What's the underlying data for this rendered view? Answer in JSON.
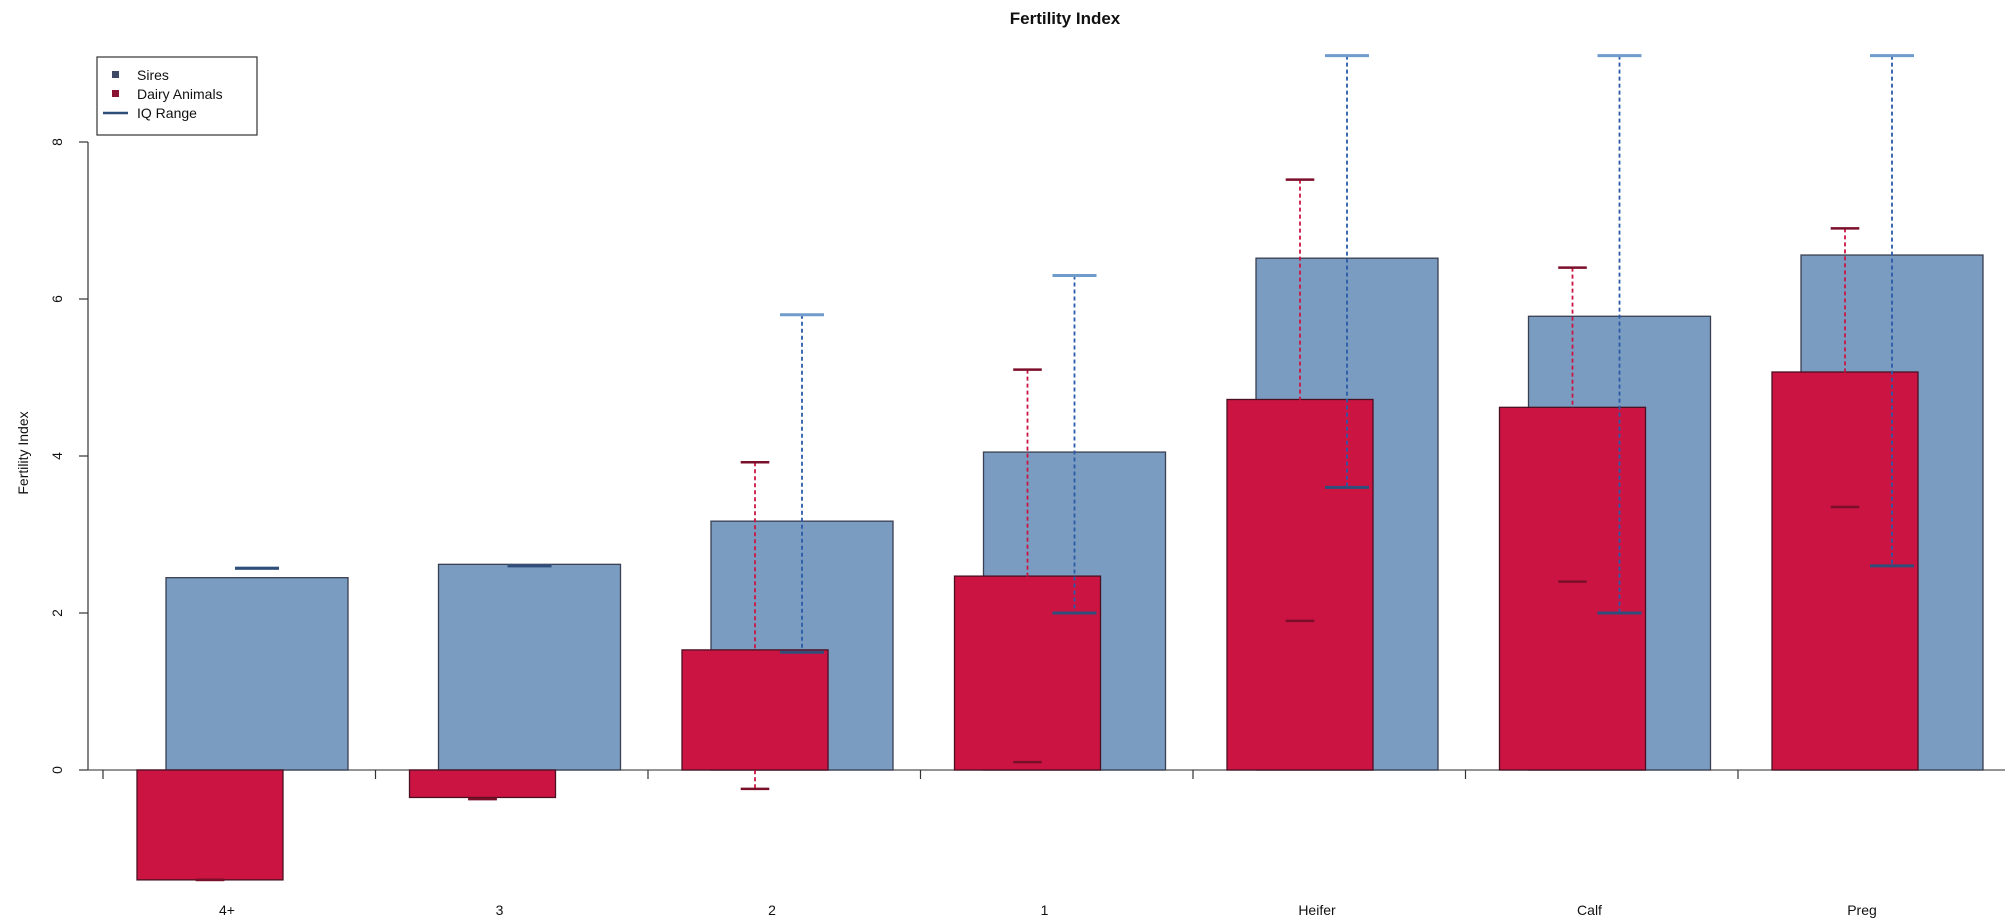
{
  "chart_data": {
    "type": "bar",
    "title": "Fertility Index",
    "xlabel": "",
    "ylabel": "Fertility Index",
    "categories": [
      "4+",
      "3",
      "2",
      "1",
      "Heifer",
      "Calf",
      "Preg"
    ],
    "ylim": [
      -1.5,
      9.1
    ],
    "yticks": [
      0,
      2,
      4,
      6,
      8
    ],
    "legend_position": "top-left",
    "legend": [
      "Sires",
      "Dairy Animals",
      "IQ Range"
    ],
    "series": [
      {
        "name": "Sires",
        "color": "#7a9cc0",
        "values": [
          2.45,
          2.62,
          3.17,
          4.05,
          6.52,
          5.78,
          6.56
        ],
        "iq_low": [
          2.57,
          2.6,
          1.5,
          2.0,
          3.6,
          2.0,
          2.6
        ],
        "iq_high": [
          2.57,
          2.6,
          5.8,
          6.3,
          9.1,
          9.1,
          9.1
        ]
      },
      {
        "name": "Dairy Animals",
        "color": "#cc1443",
        "values": [
          -1.4,
          -0.35,
          1.53,
          2.47,
          4.72,
          4.62,
          5.07
        ],
        "iq_low": [
          -1.4,
          -0.37,
          -0.24,
          0.1,
          1.9,
          2.4,
          3.35
        ],
        "iq_high": [
          -1.4,
          -0.37,
          3.92,
          5.1,
          7.52,
          6.4,
          6.9
        ]
      }
    ]
  }
}
